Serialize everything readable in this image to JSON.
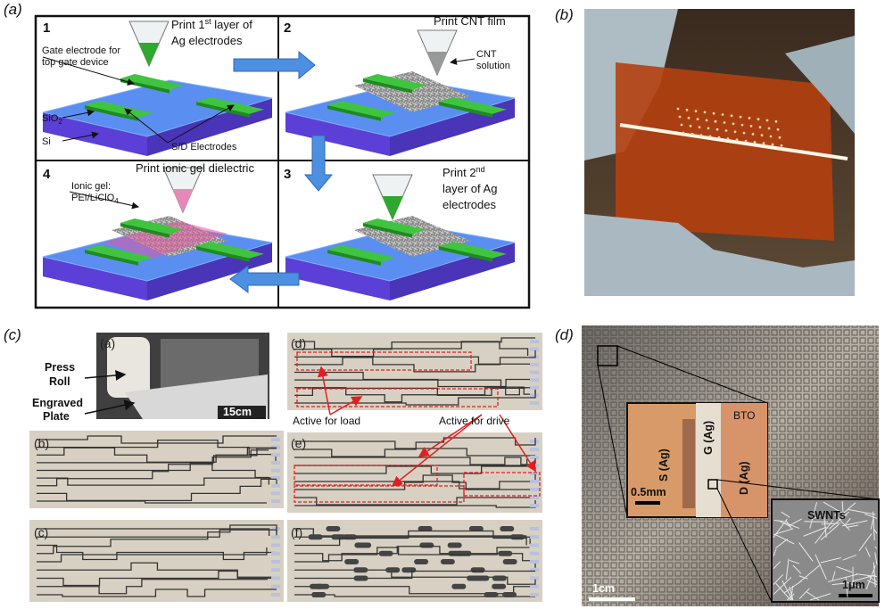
{
  "panel_labels": {
    "a": "(a)",
    "b": "(b)",
    "c": "(c)",
    "d": "(d)"
  },
  "panel_a": {
    "step1": {
      "number": "1",
      "title_line1": [
        "Print 1",
        "st",
        " layer of"
      ],
      "title_line2": "Ag electrodes",
      "gate_label": [
        "Gate electrode for",
        "top gate device"
      ],
      "sio2_label": [
        "SiO",
        "2"
      ],
      "si_label": "Si",
      "sd_label": "S/D Electrodes"
    },
    "step2": {
      "number": "2",
      "title": "Print CNT film",
      "cnt_label": [
        "CNT",
        "solution"
      ]
    },
    "step3": {
      "number": "3",
      "title_line1": [
        "Print 2",
        "nd"
      ],
      "title_line2": "layer of Ag",
      "title_line3": "electrodes"
    },
    "step4": {
      "number": "4",
      "title": "Print ionic gel dielectric",
      "gel_line1": "Ionic gel:",
      "gel_line2": [
        "PEI/LiClO",
        "4"
      ]
    }
  },
  "panel_c": {
    "inset_labels": [
      "(a)",
      "(b)",
      "(c)",
      "(d)",
      "(e)",
      "(f)"
    ],
    "press_roll": [
      "Press",
      "Roll"
    ],
    "engraved_plate": [
      "Engraved",
      "Plate"
    ],
    "scale": "15cm",
    "active_load": "Active for load",
    "active_drive": "Active for drive"
  },
  "panel_d": {
    "bto": "BTO",
    "source": "S (Ag)",
    "gate": "G (Ag)",
    "drain": "D (Ag)",
    "inset_scale": "0.5mm",
    "swnts": "SWNTs",
    "scale": "1cm",
    "swnt_scale": "1μm"
  }
}
